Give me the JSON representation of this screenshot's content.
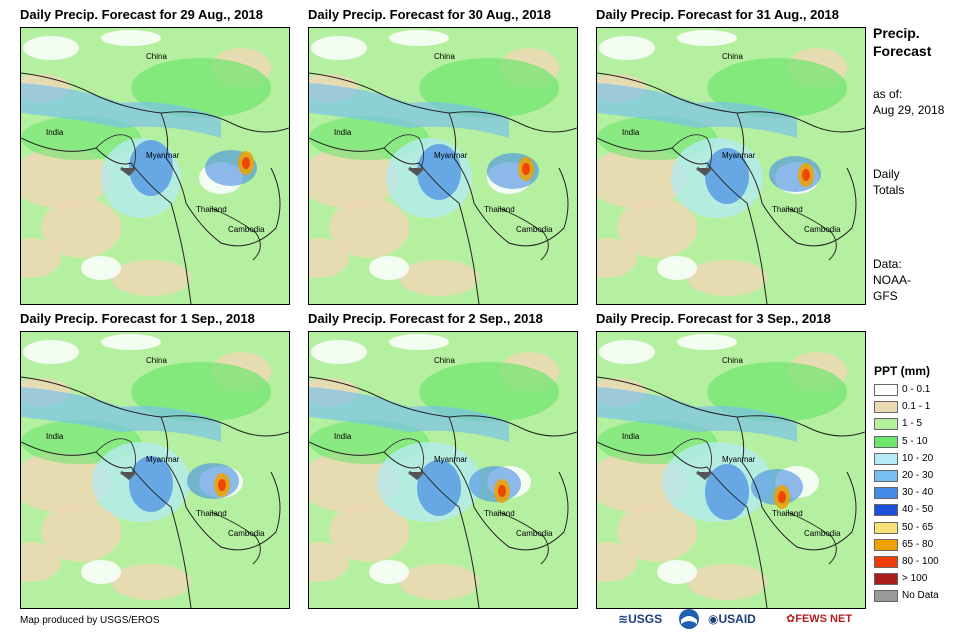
{
  "panels": [
    {
      "title": "Daily Precip. Forecast for 29 Aug., 2018",
      "day": 0
    },
    {
      "title": "Daily Precip. Forecast for 30 Aug., 2018",
      "day": 1
    },
    {
      "title": "Daily Precip. Forecast for 31 Aug., 2018",
      "day": 2
    },
    {
      "title": "Daily Precip. Forecast for 1 Sep., 2018",
      "day": 3
    },
    {
      "title": "Daily Precip. Forecast for 2 Sep., 2018",
      "day": 4
    },
    {
      "title": "Daily Precip. Forecast for 3 Sep., 2018",
      "day": 5
    }
  ],
  "places": {
    "china": "China",
    "india": "India",
    "myanmar": "Myanmar",
    "thailand": "Thailand",
    "cambodia": "Cambodia"
  },
  "side": {
    "title_line1": "Precip.",
    "title_line2": "Forecast",
    "asof_line1": "as of:",
    "asof_line2": "Aug 29, 2018",
    "totals_line1": "Daily",
    "totals_line2": "Totals",
    "data_line1": "Data:",
    "data_line2": "NOAA-",
    "data_line3": "GFS"
  },
  "legend": {
    "title": "PPT (mm)",
    "items": [
      {
        "label": "0 - 0.1",
        "color": "#ffffff"
      },
      {
        "label": "0.1 - 1",
        "color": "#ebd9b4"
      },
      {
        "label": "1 - 5",
        "color": "#b4f0a0"
      },
      {
        "label": "5 - 10",
        "color": "#6ee66e"
      },
      {
        "label": "10 - 20",
        "color": "#b4ebf5"
      },
      {
        "label": "20 - 30",
        "color": "#78bef0"
      },
      {
        "label": "30 - 40",
        "color": "#468ce6"
      },
      {
        "label": "40 - 50",
        "color": "#1e50dc"
      },
      {
        "label": "50 - 65",
        "color": "#f5e178"
      },
      {
        "label": "65 - 80",
        "color": "#f0a000"
      },
      {
        "label": "80 - 100",
        "color": "#f03c00"
      },
      {
        "label": "> 100",
        "color": "#aa1e1e"
      },
      {
        "label": "No Data",
        "color": "#999999"
      }
    ]
  },
  "credit": "Map produced by USGS/EROS",
  "logos": {
    "usgs": "USGS",
    "usaid": "USAID",
    "fewsnet": "FEWS NET"
  }
}
